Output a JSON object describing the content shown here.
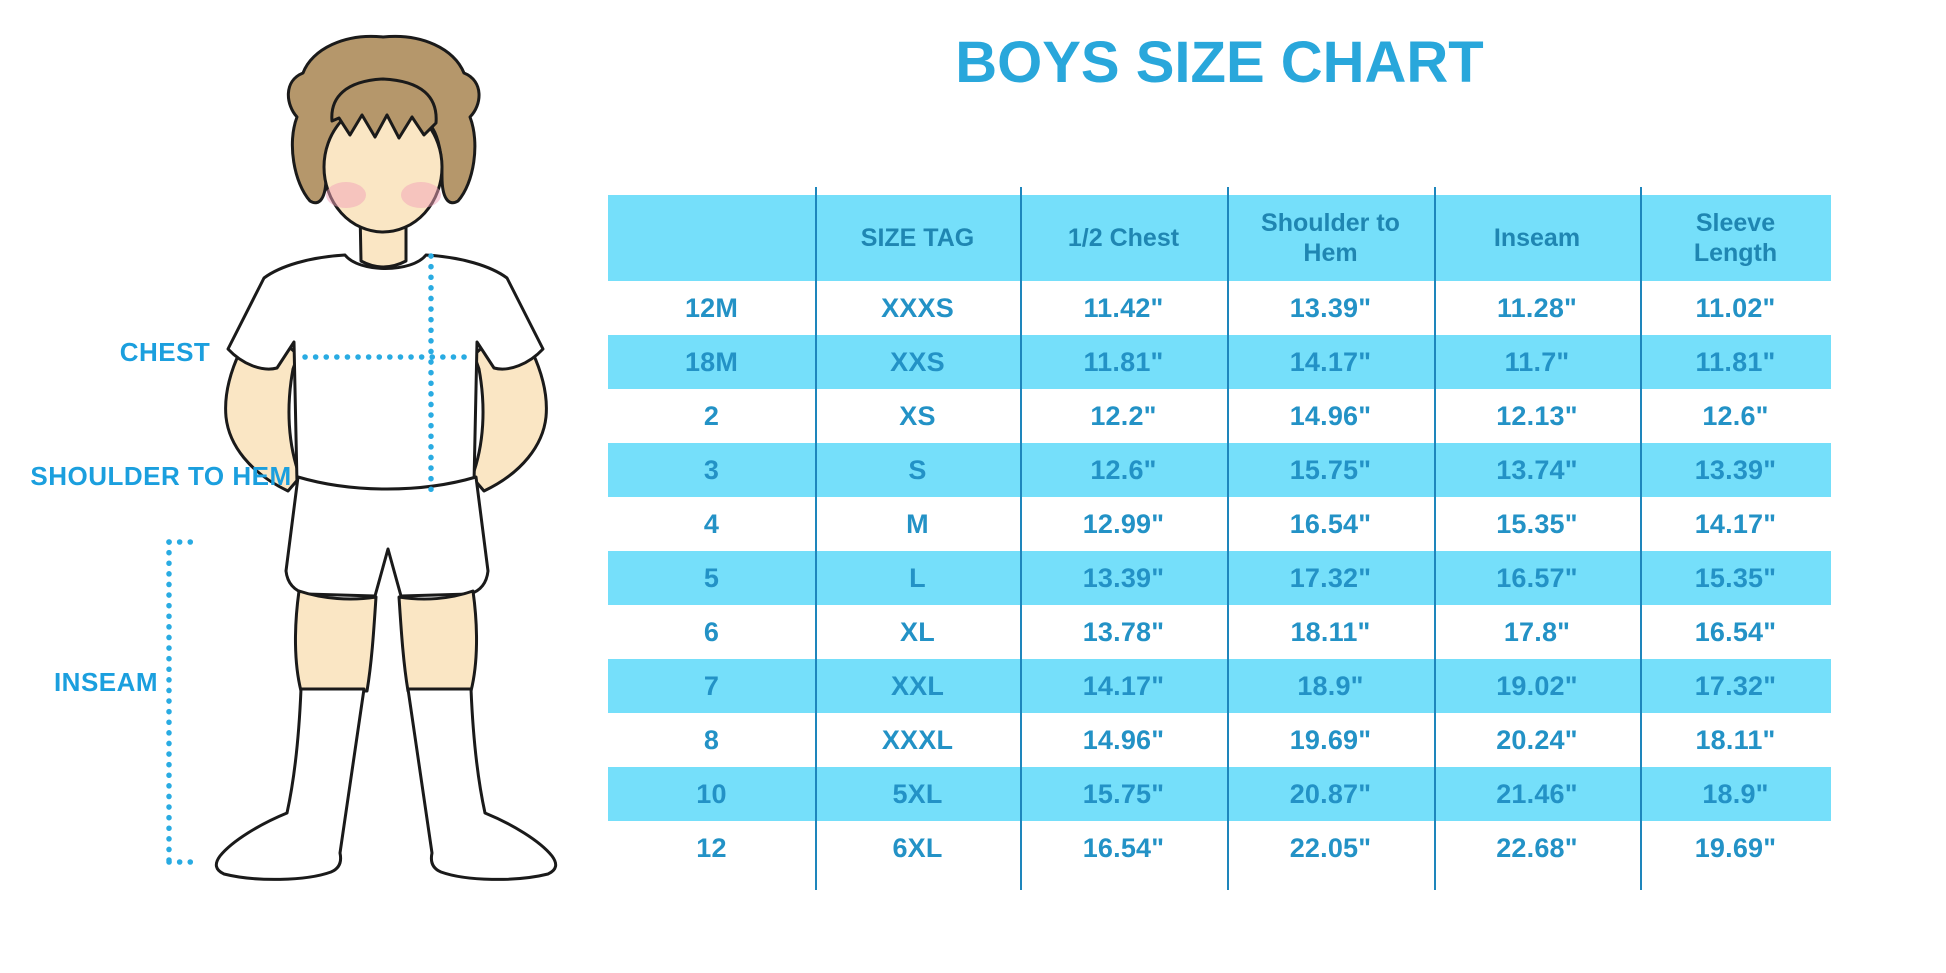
{
  "title": {
    "text": "BOYS SIZE CHART",
    "color": "#29A7DB"
  },
  "figure": {
    "labels": {
      "chest": "CHEST",
      "shoulder_to_hem": "SHOULDER TO HEM",
      "inseam": "INSEAM"
    },
    "label_color": "#1B9FDE",
    "dotted_line_color": "#29ABE2",
    "skin_color": "#FAE6C4",
    "hair_color": "#B5976B",
    "blush_color": "#F2A2B8",
    "outline_color": "#1a1a1a",
    "clothing_color": "#ffffff"
  },
  "chart_data": {
    "type": "table",
    "title": "BOYS SIZE CHART",
    "columns": [
      "",
      "SIZE TAG",
      "1/2 Chest",
      "Shoulder to Hem",
      "Inseam",
      "Sleeve Length"
    ],
    "rows": [
      [
        "12M",
        "XXXS",
        "11.42\"",
        "13.39\"",
        "11.28\"",
        "11.02\""
      ],
      [
        "18M",
        "XXS",
        "11.81\"",
        "14.17\"",
        "11.7\"",
        "11.81\""
      ],
      [
        "2",
        "XS",
        "12.2\"",
        "14.96\"",
        "12.13\"",
        "12.6\""
      ],
      [
        "3",
        "S",
        "12.6\"",
        "15.75\"",
        "13.74\"",
        "13.39\""
      ],
      [
        "4",
        "M",
        "12.99\"",
        "16.54\"",
        "15.35\"",
        "14.17\""
      ],
      [
        "5",
        "L",
        "13.39\"",
        "17.32\"",
        "16.57\"",
        "15.35\""
      ],
      [
        "6",
        "XL",
        "13.78\"",
        "18.11\"",
        "17.8\"",
        "16.54\""
      ],
      [
        "7",
        "XXL",
        "14.17\"",
        "18.9\"",
        "19.02\"",
        "17.32\""
      ],
      [
        "8",
        "XXXL",
        "14.96\"",
        "19.69\"",
        "20.24\"",
        "18.11\""
      ],
      [
        "10",
        "5XL",
        "15.75\"",
        "20.87\"",
        "21.46\"",
        "18.9\""
      ],
      [
        "12",
        "6XL",
        "16.54\"",
        "22.05\"",
        "22.68\"",
        "19.69\""
      ]
    ],
    "layout": {
      "stripe_pattern": "alternating, first data row white",
      "stripe_color": "#75DFFA",
      "divider_color": "#1E86BC",
      "header_text_color": "#1F86B2",
      "cell_text_color": "#2392C6",
      "grid": "vertical column dividers only, no outer border"
    }
  }
}
